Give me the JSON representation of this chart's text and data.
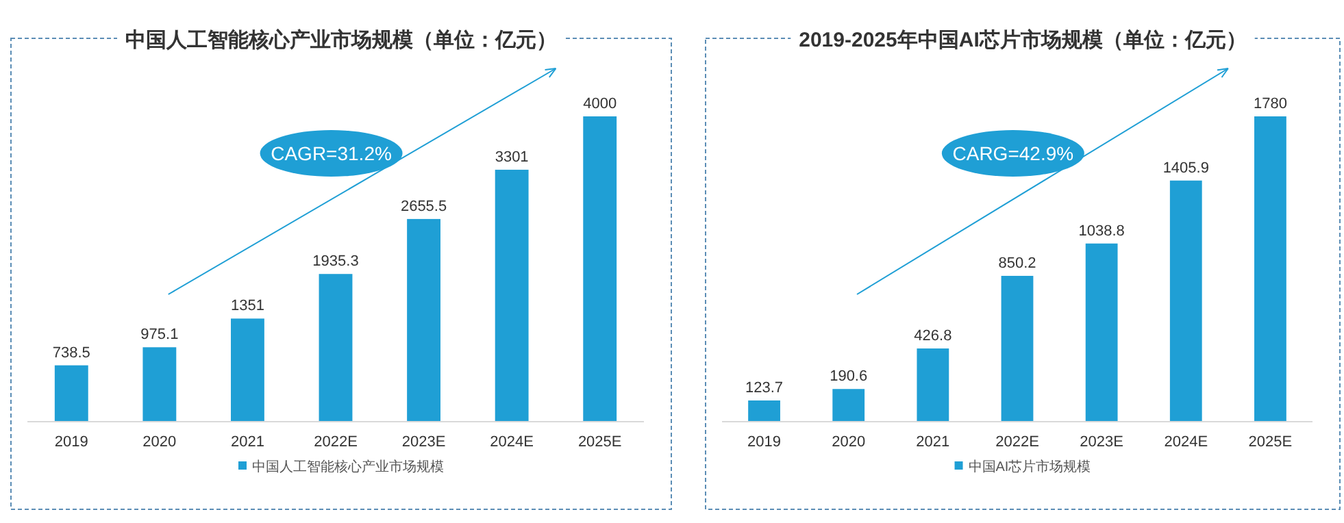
{
  "chart_data": [
    {
      "type": "bar",
      "title": "中国人工智能核心产业市场规模（单位：亿元）",
      "categories": [
        "2019",
        "2020",
        "2021",
        "2022E",
        "2023E",
        "2024E",
        "2025E"
      ],
      "series": [
        {
          "name": "中国人工智能核心产业市场规模",
          "color": "#1f9fd5",
          "values": [
            738.5,
            975.1,
            1351,
            1935.3,
            2655.5,
            3301,
            4000
          ]
        }
      ],
      "data_labels": true,
      "legend": "bottom",
      "annotations": [
        "CAGR=31.2%"
      ]
    },
    {
      "type": "bar",
      "title": "2019-2025年中国AI芯片市场规模（单位：亿元）",
      "categories": [
        "2019",
        "2020",
        "2021",
        "2022E",
        "2023E",
        "2024E",
        "2025E"
      ],
      "series": [
        {
          "name": "中国AI芯片市场规模",
          "color": "#1f9fd5",
          "values": [
            123.7,
            190.6,
            426.8,
            850.2,
            1038.8,
            1405.9,
            1780
          ]
        }
      ],
      "data_labels": true,
      "legend": "bottom",
      "annotations": [
        "CARG=42.9%"
      ]
    }
  ]
}
